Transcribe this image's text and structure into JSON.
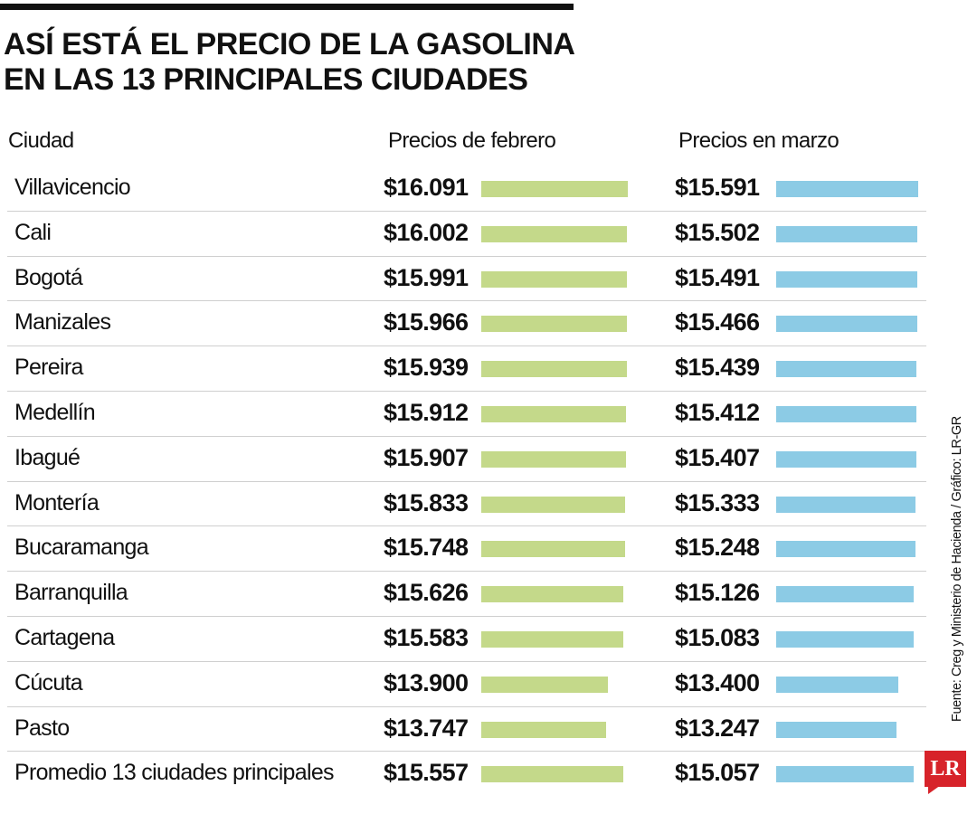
{
  "header": {
    "title_line1": "ASÍ ESTÁ EL PRECIO DE LA GASOLINA",
    "title_line2": "EN LAS 13 PRINCIPALES CIUDADES"
  },
  "columns": {
    "city": "Ciudad",
    "february": "Precios de febrero",
    "march": "Precios en marzo"
  },
  "source": "Fuente: Creg y Ministerio de Hacienda / Gráfico: LR-GR",
  "logo": {
    "text": "LR"
  },
  "colors": {
    "february_bar": "#c4d98a",
    "march_bar": "#8ccbe5",
    "logo": "#d7232a"
  },
  "chart_data": {
    "type": "bar",
    "title": "ASÍ ESTÁ EL PRECIO DE LA GASOLINA EN LAS 13 PRINCIPALES CIUDADES",
    "orientation": "horizontal",
    "categories": [
      "Villavicencio",
      "Cali",
      "Bogotá",
      "Manizales",
      "Pereira",
      "Medellín",
      "Ibagué",
      "Montería",
      "Bucaramanga",
      "Barranquilla",
      "Cartagena",
      "Cúcuta",
      "Pasto",
      "Promedio 13 ciudades principales"
    ],
    "series": [
      {
        "name": "Precios de febrero",
        "values": [
          16091,
          16002,
          15991,
          15966,
          15939,
          15912,
          15907,
          15833,
          15748,
          15626,
          15583,
          13900,
          13747,
          15557
        ],
        "labels": [
          "$16.091",
          "$16.002",
          "$15.991",
          "$15.966",
          "$15.939",
          "$15.912",
          "$15.907",
          "$15.833",
          "$15.748",
          "$15.626",
          "$15.583",
          "$13.900",
          "$13.747",
          "$15.557"
        ],
        "color": "#c4d98a"
      },
      {
        "name": "Precios en marzo",
        "values": [
          15591,
          15502,
          15491,
          15466,
          15439,
          15412,
          15407,
          15333,
          15248,
          15126,
          15083,
          13400,
          13247,
          15057
        ],
        "labels": [
          "$15.591",
          "$15.502",
          "$15.491",
          "$15.466",
          "$15.439",
          "$15.412",
          "$15.407",
          "$15.333",
          "$15.248",
          "$15.126",
          "$15.083",
          "$13.400",
          "$13.247",
          "$15.057"
        ],
        "color": "#8ccbe5"
      }
    ],
    "grid": false,
    "legend": "none"
  }
}
